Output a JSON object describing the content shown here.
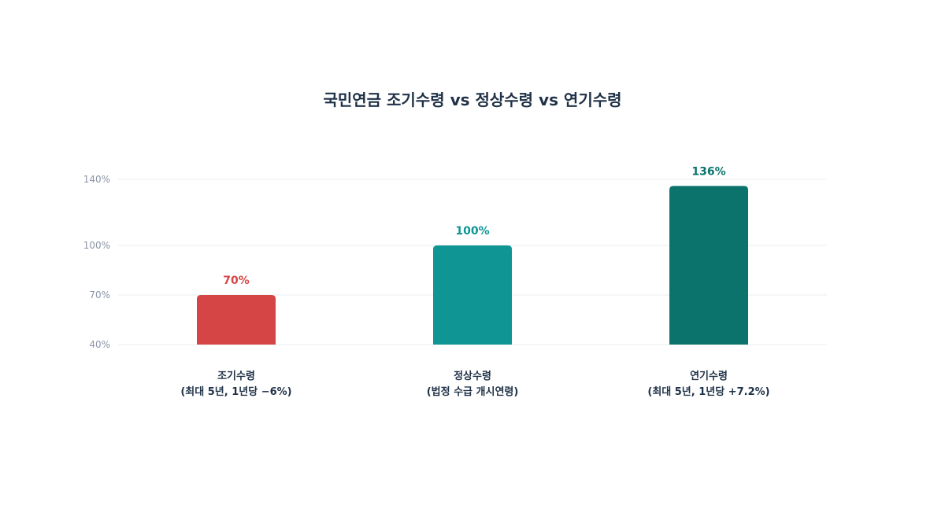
{
  "chart_data": {
    "type": "bar",
    "title": "국민연금 조기수령 vs 정상수령 vs 연기수령",
    "xlabel": "",
    "ylabel": "",
    "ylim": [
      40,
      140
    ],
    "y_ticks": [
      "40%",
      "70%",
      "100%",
      "140%"
    ],
    "y_tick_values": [
      40,
      70,
      100,
      140
    ],
    "grid": true,
    "legend": "none",
    "categories": [
      [
        "조기수령",
        "(최대 5년, 1년당 −6%)"
      ],
      [
        "정상수령",
        "(법정 수급 개시연령)"
      ],
      [
        "연기수령",
        "(최대 5년, 1년당 +7.2%)"
      ]
    ],
    "values": [
      70,
      100,
      136
    ],
    "value_labels": [
      "70%",
      "100%",
      "136%"
    ],
    "colors": [
      "#d64545",
      "#0e9594",
      "#0b736c"
    ]
  }
}
